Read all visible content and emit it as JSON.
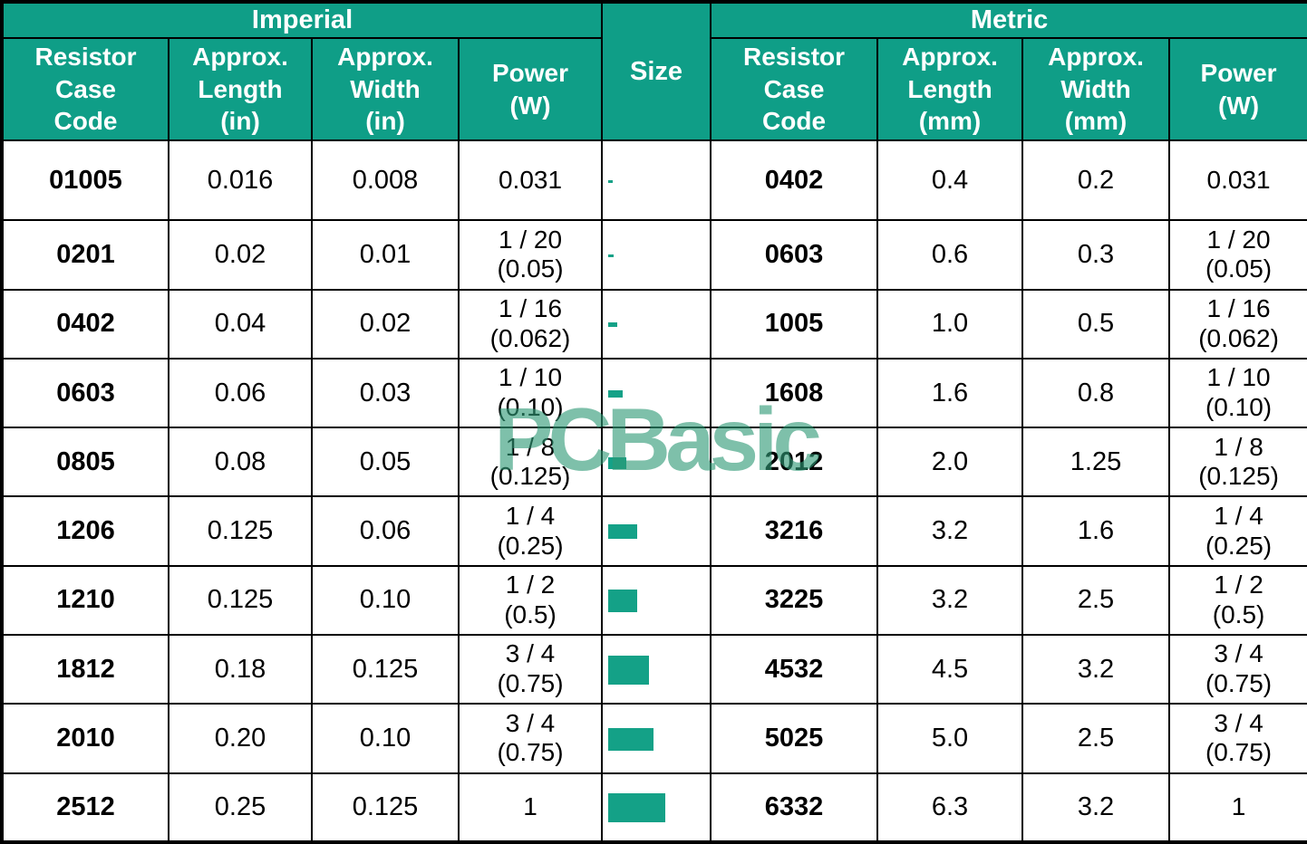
{
  "header": {
    "imperial": "Imperial",
    "metric": "Metric",
    "size": "Size",
    "imperial_columns": [
      "Resistor\nCase\nCode",
      "Approx.\nLength\n(in)",
      "Approx.\nWidth\n(in)",
      "Power\n(W)"
    ],
    "metric_columns": [
      "Resistor\nCase\nCode",
      "Approx.\nLength\n(mm)",
      "Approx.\nWidth\n(mm)",
      "Power\n(W)"
    ]
  },
  "watermark": "PCBasic",
  "colors": {
    "header_bg": "#0f9e87",
    "header_text": "#ffffff",
    "size_rect": "#14a187",
    "watermark": "#4fa98c",
    "border": "#000000",
    "body_text": "#000000"
  },
  "rows": [
    {
      "imperial": {
        "code": "01005",
        "length_in": "0.016",
        "width_in": "0.008",
        "power_w": "0.031"
      },
      "metric": {
        "code": "0402",
        "length_mm": "0.4",
        "width_mm": "0.2",
        "power_w": "0.031"
      }
    },
    {
      "imperial": {
        "code": "0201",
        "length_in": "0.02",
        "width_in": "0.01",
        "power_w": "1 / 20\n(0.05)"
      },
      "metric": {
        "code": "0603",
        "length_mm": "0.6",
        "width_mm": "0.3",
        "power_w": "1 / 20\n(0.05)"
      }
    },
    {
      "imperial": {
        "code": "0402",
        "length_in": "0.04",
        "width_in": "0.02",
        "power_w": "1 / 16\n(0.062)"
      },
      "metric": {
        "code": "1005",
        "length_mm": "1.0",
        "width_mm": "0.5",
        "power_w": "1 / 16\n(0.062)"
      }
    },
    {
      "imperial": {
        "code": "0603",
        "length_in": "0.06",
        "width_in": "0.03",
        "power_w": "1 / 10\n(0.10)"
      },
      "metric": {
        "code": "1608",
        "length_mm": "1.6",
        "width_mm": "0.8",
        "power_w": "1 / 10\n(0.10)"
      }
    },
    {
      "imperial": {
        "code": "0805",
        "length_in": "0.08",
        "width_in": "0.05",
        "power_w": "1 / 8\n(0.125)"
      },
      "metric": {
        "code": "2012",
        "length_mm": "2.0",
        "width_mm": "1.25",
        "power_w": "1 / 8\n(0.125)"
      }
    },
    {
      "imperial": {
        "code": "1206",
        "length_in": "0.125",
        "width_in": "0.06",
        "power_w": "1 / 4\n(0.25)"
      },
      "metric": {
        "code": "3216",
        "length_mm": "3.2",
        "width_mm": "1.6",
        "power_w": "1 / 4\n(0.25)"
      }
    },
    {
      "imperial": {
        "code": "1210",
        "length_in": "0.125",
        "width_in": "0.10",
        "power_w": "1 / 2\n(0.5)"
      },
      "metric": {
        "code": "3225",
        "length_mm": "3.2",
        "width_mm": "2.5",
        "power_w": "1 / 2\n(0.5)"
      }
    },
    {
      "imperial": {
        "code": "1812",
        "length_in": "0.18",
        "width_in": "0.125",
        "power_w": "3 / 4\n(0.75)"
      },
      "metric": {
        "code": "4532",
        "length_mm": "4.5",
        "width_mm": "3.2",
        "power_w": "3 / 4\n(0.75)"
      }
    },
    {
      "imperial": {
        "code": "2010",
        "length_in": "0.20",
        "width_in": "0.10",
        "power_w": "3 / 4\n(0.75)"
      },
      "metric": {
        "code": "5025",
        "length_mm": "5.0",
        "width_mm": "2.5",
        "power_w": "3 / 4\n(0.75)"
      }
    },
    {
      "imperial": {
        "code": "2512",
        "length_in": "0.25",
        "width_in": "0.125",
        "power_w": "1"
      },
      "metric": {
        "code": "6332",
        "length_mm": "6.3",
        "width_mm": "3.2",
        "power_w": "1"
      }
    }
  ],
  "chart_data": {
    "type": "table",
    "title": "SMD Resistor Case Code Size Chart (Imperial vs Metric)",
    "sections": [
      "Imperial",
      "Size",
      "Metric"
    ],
    "columns": [
      "Resistor Case Code",
      "Approx. Length (in)",
      "Approx. Width (in)",
      "Power (W)",
      "Size",
      "Resistor Case Code",
      "Approx. Length (mm)",
      "Approx. Width (mm)",
      "Power (W)"
    ],
    "rows": [
      [
        "01005",
        "0.016",
        "0.008",
        "0.031",
        "rect 0.4x0.2mm",
        "0402",
        "0.4",
        "0.2",
        "0.031"
      ],
      [
        "0201",
        "0.02",
        "0.01",
        "1 / 20 (0.05)",
        "rect 0.6x0.3mm",
        "0603",
        "0.6",
        "0.3",
        "1 / 20 (0.05)"
      ],
      [
        "0402",
        "0.04",
        "0.02",
        "1 / 16 (0.062)",
        "rect 1.0x0.5mm",
        "1005",
        "1.0",
        "0.5",
        "1 / 16 (0.062)"
      ],
      [
        "0603",
        "0.06",
        "0.03",
        "1 / 10 (0.10)",
        "rect 1.6x0.8mm",
        "1608",
        "1.6",
        "0.8",
        "1 / 10 (0.10)"
      ],
      [
        "0805",
        "0.08",
        "0.05",
        "1 / 8 (0.125)",
        "rect 2.0x1.25mm",
        "2012",
        "2.0",
        "1.25",
        "1 / 8 (0.125)"
      ],
      [
        "1206",
        "0.125",
        "0.06",
        "1 / 4 (0.25)",
        "rect 3.2x1.6mm",
        "3216",
        "3.2",
        "1.6",
        "1 / 4 (0.25)"
      ],
      [
        "1210",
        "0.125",
        "0.10",
        "1 / 2 (0.5)",
        "rect 3.2x2.5mm",
        "3225",
        "3.2",
        "2.5",
        "1 / 2 (0.5)"
      ],
      [
        "1812",
        "0.18",
        "0.125",
        "3 / 4 (0.75)",
        "rect 4.5x3.2mm",
        "4532",
        "4.5",
        "3.2",
        "3 / 4 (0.75)"
      ],
      [
        "2010",
        "0.20",
        "0.10",
        "3 / 4 (0.75)",
        "rect 5.0x2.5mm",
        "5025",
        "5.0",
        "2.5",
        "3 / 4 (0.75)"
      ],
      [
        "2512",
        "0.25",
        "0.125",
        "1",
        "rect 6.3x3.2mm",
        "6332",
        "6.3",
        "3.2",
        "1"
      ]
    ]
  }
}
